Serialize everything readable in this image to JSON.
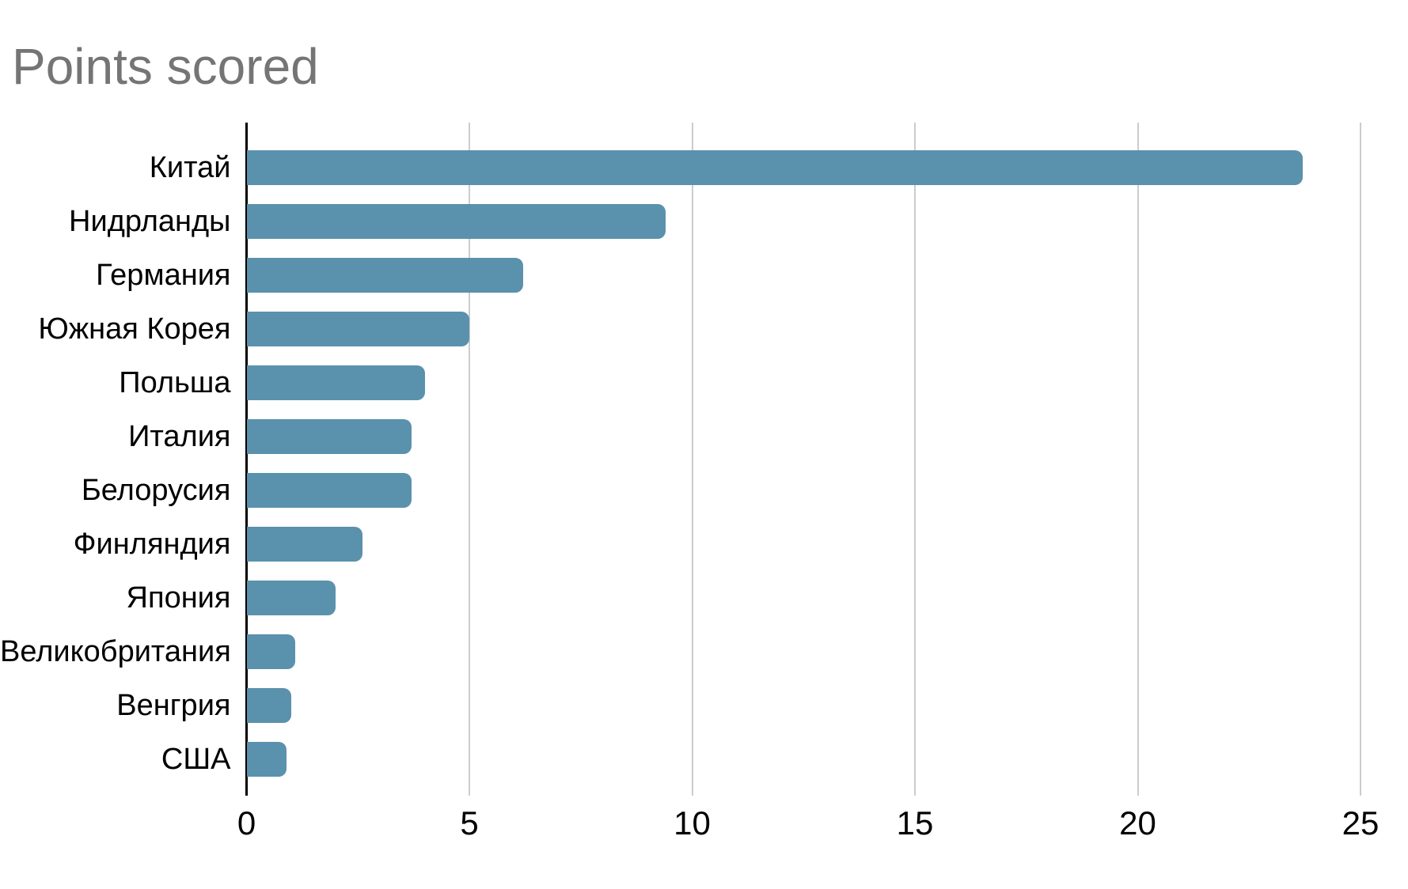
{
  "page": {
    "background": "#ffffff"
  },
  "chart_data": {
    "type": "bar",
    "orientation": "horizontal",
    "title": "Points scored",
    "categories": [
      "Китай",
      "Нидрланды",
      "Германия",
      "Южная Корея",
      "Польша",
      "Италия",
      "Белорусия",
      "Финляндия",
      "Япония",
      "Великобритания",
      "Венгрия",
      "США"
    ],
    "values": [
      23.7,
      9.4,
      6.2,
      5.0,
      4.0,
      3.7,
      3.7,
      2.6,
      2.0,
      1.1,
      1.0,
      0.9
    ],
    "xlabel": "",
    "ylabel": "",
    "xlim": [
      0,
      25
    ],
    "x_ticks": [
      0,
      5,
      10,
      15,
      20,
      25
    ],
    "grid": "vertical",
    "legend": "none",
    "colors": {
      "bar": "#5a91ad",
      "title": "#757575",
      "gridline": "#cccccc",
      "axis_line": "#000000",
      "labels": "#000000"
    }
  }
}
